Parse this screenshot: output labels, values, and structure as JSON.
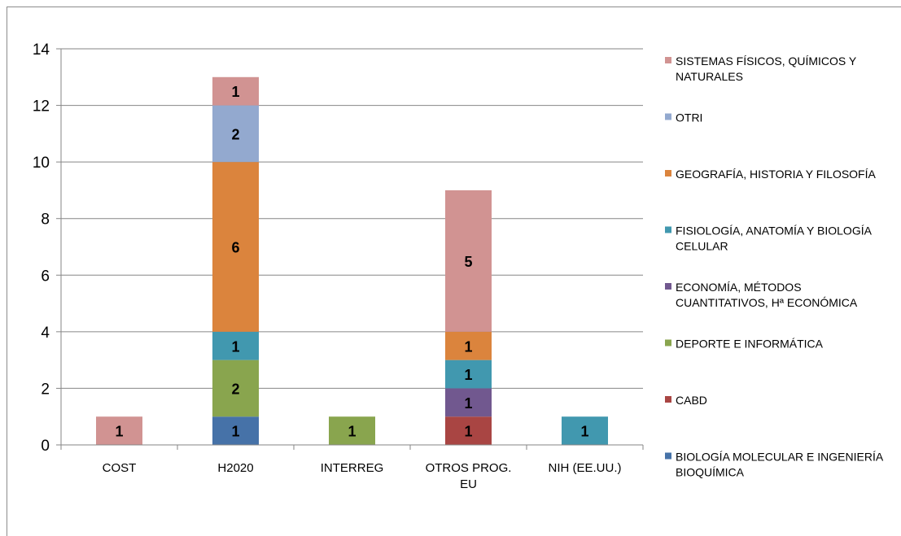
{
  "chart_data": {
    "type": "bar",
    "stacked": true,
    "categories": [
      "COST",
      "H2020",
      "INTERREG",
      "OTROS PROG. EU",
      "NIH (EE.UU.)"
    ],
    "ylim": [
      0,
      14
    ],
    "yticks": [
      0,
      2,
      4,
      6,
      8,
      10,
      12,
      14
    ],
    "grid": true,
    "legend_position": "right",
    "series": [
      {
        "name": "BIOLOGÍA MOLECULAR E INGENIERÍA BIOQUÍMICA",
        "color": "#4672a8",
        "values": [
          0,
          1,
          0,
          0,
          0
        ]
      },
      {
        "name": "CABD",
        "color": "#a94543",
        "values": [
          0,
          0,
          0,
          1,
          0
        ]
      },
      {
        "name": "DEPORTE E INFORMÁTICA",
        "color": "#89a54e",
        "values": [
          0,
          2,
          1,
          0,
          0
        ]
      },
      {
        "name": "ECONOMÍA, MÉTODOS CUANTITATIVOS, Hª ECONÓMICA",
        "color": "#71588f",
        "values": [
          0,
          0,
          0,
          1,
          0
        ]
      },
      {
        "name": "FISIOLOGÍA, ANATOMÍA Y BIOLOGÍA CELULAR",
        "color": "#4198af",
        "values": [
          0,
          1,
          0,
          1,
          1
        ]
      },
      {
        "name": "GEOGRAFÍA, HISTORIA Y FILOSOFÍA",
        "color": "#db843d",
        "values": [
          0,
          6,
          0,
          1,
          0
        ]
      },
      {
        "name": "OTRI",
        "color": "#93a9cf",
        "values": [
          0,
          2,
          0,
          0,
          0
        ]
      },
      {
        "name": "SISTEMAS FÍSICOS, QUÍMICOS Y NATURALES",
        "color": "#d19392",
        "values": [
          1,
          1,
          0,
          5,
          0
        ]
      }
    ]
  }
}
